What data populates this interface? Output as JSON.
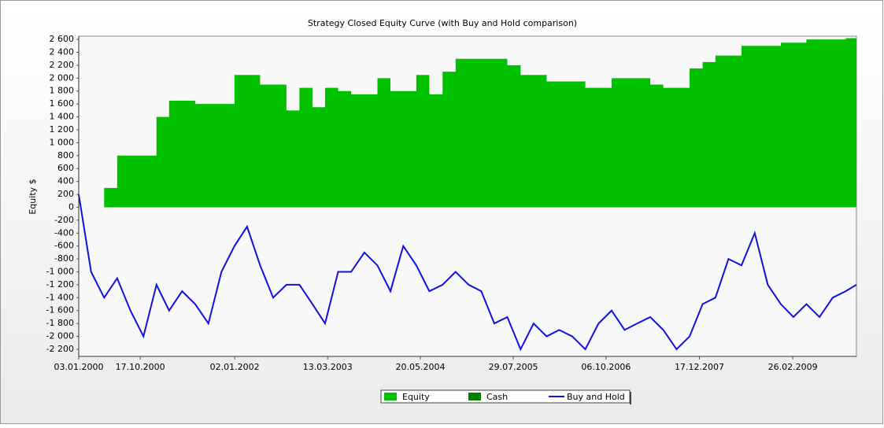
{
  "chart_data": {
    "type": "area-line",
    "title": "Strategy Closed Equity Curve (with Buy and Hold comparison)",
    "y_label": "Equity $",
    "x": [
      "03.01.2000",
      "01.03.2000",
      "01.05.2000",
      "01.07.2000",
      "01.09.2000",
      "01.11.2000",
      "01.01.2001",
      "01.03.2001",
      "01.05.2001",
      "01.07.2001",
      "01.09.2001",
      "01.11.2001",
      "01.01.2002",
      "01.03.2002",
      "01.05.2002",
      "01.07.2002",
      "01.09.2002",
      "01.11.2002",
      "01.01.2003",
      "01.03.2003",
      "01.05.2003",
      "01.07.2003",
      "01.09.2003",
      "01.11.2003",
      "01.01.2004",
      "01.03.2004",
      "01.05.2004",
      "01.07.2004",
      "01.09.2004",
      "01.11.2004",
      "01.01.2005",
      "01.03.2005",
      "01.05.2005",
      "01.07.2005",
      "01.09.2005",
      "01.11.2005",
      "01.01.2006",
      "01.03.2006",
      "01.05.2006",
      "01.07.2006",
      "01.09.2006",
      "01.11.2006",
      "01.01.2007",
      "01.03.2007",
      "01.05.2007",
      "01.07.2007",
      "01.09.2007",
      "01.11.2007",
      "01.01.2008",
      "01.03.2008",
      "01.05.2008",
      "01.07.2008",
      "01.09.2008",
      "01.11.2008",
      "01.01.2009",
      "01.03.2009",
      "01.05.2009",
      "01.07.2009",
      "01.09.2009",
      "01.11.2009",
      "21.12.2009"
    ],
    "series": [
      {
        "name": "Equity",
        "color": "#00c000",
        "kind": "area",
        "values": [
          0,
          0,
          300,
          800,
          800,
          800,
          1400,
          1650,
          1650,
          1600,
          1600,
          1600,
          2050,
          2050,
          1900,
          1900,
          1500,
          1850,
          1550,
          1850,
          1800,
          1750,
          1750,
          2000,
          1800,
          1800,
          2050,
          1750,
          2100,
          2300,
          2300,
          2300,
          2300,
          2200,
          2050,
          2050,
          1950,
          1950,
          1950,
          1850,
          1850,
          2000,
          2000,
          2000,
          1900,
          1850,
          1850,
          2150,
          2250,
          2350,
          2350,
          2500,
          2500,
          2500,
          2550,
          2550,
          2600,
          2600,
          2600,
          2620,
          2620
        ]
      },
      {
        "name": "Cash",
        "color": "#008000",
        "kind": "area"
      },
      {
        "name": "Buy and Hold",
        "color": "#1010e0",
        "kind": "line",
        "values": [
          200,
          -1000,
          -1400,
          -1100,
          -1600,
          -2000,
          -1200,
          -1600,
          -1300,
          -1500,
          -1800,
          -1000,
          -600,
          -300,
          -900,
          -1400,
          -1200,
          -1200,
          -1500,
          -1800,
          -1000,
          -1000,
          -700,
          -900,
          -1300,
          -600,
          -900,
          -1300,
          -1200,
          -1000,
          -1200,
          -1300,
          -1800,
          -1700,
          -2200,
          -1800,
          -2000,
          -1900,
          -2000,
          -2200,
          -1800,
          -1600,
          -1900,
          -1800,
          -1700,
          -1900,
          -2200,
          -2000,
          -1500,
          -1400,
          -800,
          -900,
          -400,
          -1200,
          -1500,
          -1700,
          -1500,
          -1700,
          -1400,
          -1300,
          -1200
        ]
      }
    ],
    "xlim": [
      "03.01.2000",
      "21.12.2009"
    ],
    "xticks": [
      "03.01.2000",
      "17.10.2000",
      "02.01.2002",
      "13.03.2003",
      "20.05.2004",
      "29.07.2005",
      "06.10.2006",
      "17.12.2007",
      "26.02.2009"
    ],
    "ylim": [
      -2310,
      2650
    ],
    "yticks": [
      {
        "value": -2200,
        "label": "-2 200"
      },
      {
        "value": -2000,
        "label": "-2 000"
      },
      {
        "value": -1800,
        "label": "-1 800"
      },
      {
        "value": -1600,
        "label": "-1 600"
      },
      {
        "value": -1400,
        "label": "-1 400"
      },
      {
        "value": -1200,
        "label": "-1 200"
      },
      {
        "value": -1000,
        "label": "-1 000"
      },
      -800,
      -600,
      -400,
      -200,
      0,
      200,
      400,
      600,
      800,
      {
        "value": 1000,
        "label": "1 000"
      },
      {
        "value": 1200,
        "label": "1 200"
      },
      {
        "value": 1400,
        "label": "1 400"
      },
      {
        "value": 1600,
        "label": "1 600"
      },
      {
        "value": 1800,
        "label": "1 800"
      },
      {
        "value": 2000,
        "label": "2 000"
      },
      {
        "value": 2200,
        "label": "2 200"
      },
      {
        "value": 2400,
        "label": "2 400"
      },
      {
        "value": 2600,
        "label": "2 600"
      }
    ],
    "grid": false
  }
}
